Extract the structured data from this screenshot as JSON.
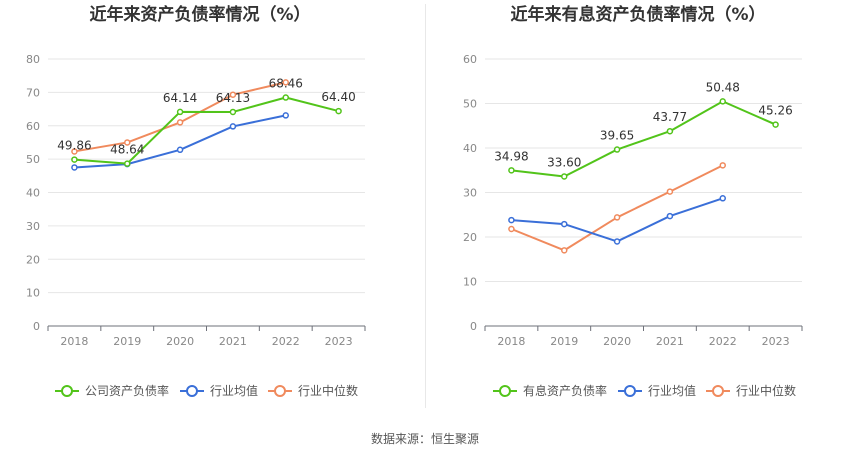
{
  "footer": "数据来源：恒生聚源",
  "chart_data": [
    {
      "type": "line",
      "title": "近年来资产负债率情况（%）",
      "categories": [
        "2018",
        "2019",
        "2020",
        "2021",
        "2022",
        "2023"
      ],
      "ylim": [
        0,
        80
      ],
      "yticks": [
        0,
        10,
        20,
        30,
        40,
        50,
        60,
        70,
        80
      ],
      "grid": true,
      "legend_position": "bottom",
      "series": [
        {
          "name": "公司资产负债率",
          "color": "#52c41a",
          "values": [
            49.86,
            48.64,
            64.14,
            64.13,
            68.46,
            64.4
          ],
          "labels": [
            "49.86",
            "48.64",
            "64.14",
            "64.13",
            "68.46",
            "64.40"
          ]
        },
        {
          "name": "行业均值",
          "color": "#3a6fd8",
          "values": [
            47.5,
            48.5,
            52.8,
            59.8,
            63.1,
            null
          ],
          "labels": []
        },
        {
          "name": "行业中位数",
          "color": "#f08a5d",
          "values": [
            52.3,
            55.0,
            61.0,
            69.3,
            73.0,
            null
          ],
          "labels": []
        }
      ]
    },
    {
      "type": "line",
      "title": "近年来有息资产负债率情况（%）",
      "categories": [
        "2018",
        "2019",
        "2020",
        "2021",
        "2022",
        "2023"
      ],
      "ylim": [
        0,
        60
      ],
      "yticks": [
        0,
        10,
        20,
        30,
        40,
        50,
        60
      ],
      "grid": true,
      "legend_position": "bottom",
      "series": [
        {
          "name": "有息资产负债率",
          "color": "#52c41a",
          "values": [
            34.98,
            33.6,
            39.65,
            43.77,
            50.48,
            45.26
          ],
          "labels": [
            "34.98",
            "33.60",
            "39.65",
            "43.77",
            "50.48",
            "45.26"
          ]
        },
        {
          "name": "行业均值",
          "color": "#3a6fd8",
          "values": [
            23.8,
            22.9,
            19.0,
            24.7,
            28.7,
            null
          ],
          "labels": []
        },
        {
          "name": "行业中位数",
          "color": "#f08a5d",
          "values": [
            21.8,
            17.0,
            24.4,
            30.2,
            36.1,
            null
          ],
          "labels": []
        }
      ]
    }
  ]
}
